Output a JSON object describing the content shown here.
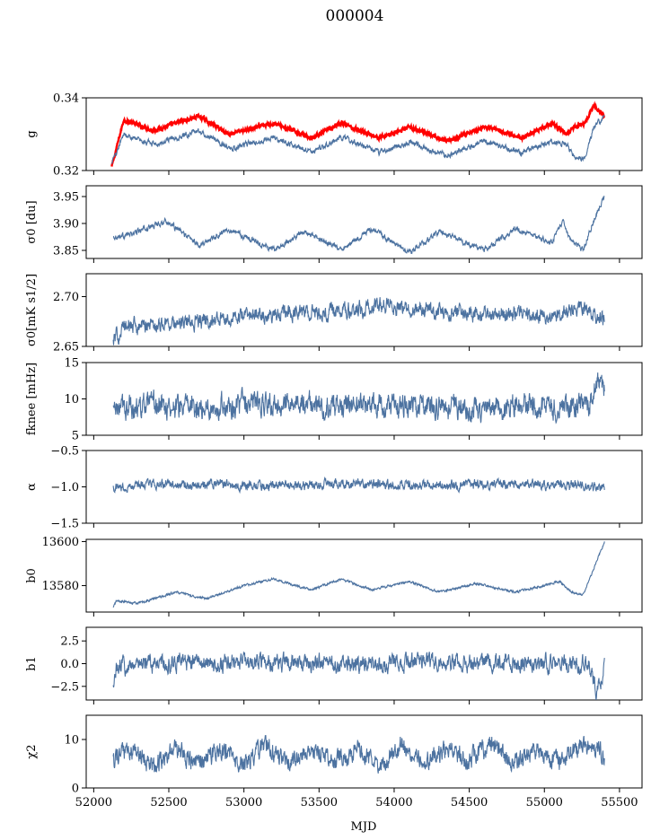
{
  "figure": {
    "title": "000004"
  },
  "colors": {
    "series": "#4c72a0",
    "highlight": "#ff0000"
  },
  "chart_data": [
    {
      "type": "line",
      "ylabel": "g",
      "ylim": [
        0.32,
        0.34
      ],
      "yticks": [
        "0.34",
        "0.32"
      ],
      "ytick_values": [
        0.34,
        0.32
      ],
      "series": [
        {
          "color": "#ff0000",
          "x": [
            52120,
            52200,
            52400,
            52700,
            52900,
            53200,
            53450,
            53650,
            53900,
            54100,
            54350,
            54600,
            54850,
            55050,
            55150,
            55200,
            55270,
            55330,
            55400
          ],
          "y": [
            0.321,
            0.334,
            0.331,
            0.335,
            0.33,
            0.333,
            0.329,
            0.333,
            0.329,
            0.332,
            0.328,
            0.332,
            0.329,
            0.333,
            0.33,
            0.332,
            0.333,
            0.338,
            0.335
          ]
        },
        {
          "color": "#4c72a0",
          "x": [
            52120,
            52200,
            52400,
            52700,
            52900,
            53200,
            53450,
            53650,
            53900,
            54100,
            54350,
            54600,
            54850,
            55050,
            55150,
            55200,
            55270,
            55330,
            55400
          ],
          "y": [
            0.322,
            0.33,
            0.327,
            0.331,
            0.326,
            0.329,
            0.325,
            0.329,
            0.325,
            0.328,
            0.324,
            0.328,
            0.325,
            0.328,
            0.327,
            0.324,
            0.323,
            0.332,
            0.335
          ]
        }
      ]
    },
    {
      "type": "line",
      "ylabel": "σ0 [du]",
      "ylim": [
        3.835,
        3.97
      ],
      "yticks": [
        "3.95",
        "3.90",
        "3.85"
      ],
      "ytick_values": [
        3.95,
        3.9,
        3.85
      ],
      "series": [
        {
          "color": "#4c72a0",
          "x": [
            52130,
            52250,
            52480,
            52700,
            52900,
            53200,
            53400,
            53650,
            53850,
            54100,
            54300,
            54600,
            54800,
            55050,
            55120,
            55170,
            55260,
            55320,
            55400
          ],
          "y": [
            3.875,
            3.88,
            3.905,
            3.86,
            3.89,
            3.85,
            3.885,
            3.85,
            3.89,
            3.845,
            3.885,
            3.85,
            3.89,
            3.865,
            3.905,
            3.87,
            3.85,
            3.9,
            3.95
          ]
        }
      ]
    },
    {
      "type": "line",
      "ylabel": "σ0[mK s1/2]",
      "ylim": [
        2.65,
        2.723
      ],
      "yticks": [
        "2.70",
        "2.65"
      ],
      "ytick_values": [
        2.7,
        2.65
      ],
      "series": [
        {
          "color": "#4c72a0",
          "x": [
            52130,
            52200,
            52400,
            52700,
            53000,
            53300,
            53600,
            53900,
            54200,
            54500,
            54800,
            55100,
            55250,
            55400
          ],
          "y": [
            2.655,
            2.67,
            2.672,
            2.675,
            2.68,
            2.683,
            2.685,
            2.69,
            2.687,
            2.683,
            2.683,
            2.68,
            2.69,
            2.675
          ]
        }
      ]
    },
    {
      "type": "line",
      "ylabel": "fknee [mHz]",
      "ylim": [
        5,
        15
      ],
      "yticks": [
        "15",
        "10",
        "5"
      ],
      "ytick_values": [
        15,
        10,
        5
      ],
      "series": [
        {
          "color": "#4c72a0",
          "x": [
            52130,
            52400,
            52700,
            53000,
            53300,
            53600,
            53900,
            54200,
            54500,
            54800,
            55100,
            55300,
            55350,
            55400
          ],
          "y": [
            8.6,
            9.0,
            8.8,
            9.3,
            9.4,
            9.1,
            9.2,
            9.0,
            8.8,
            8.9,
            8.8,
            9.0,
            12.5,
            11.5
          ]
        }
      ]
    },
    {
      "type": "line",
      "ylabel": "α",
      "ylim": [
        -1.5,
        -0.5
      ],
      "yticks": [
        "−0.5",
        "−1.0",
        "−1.5"
      ],
      "ytick_values": [
        -0.5,
        -1.0,
        -1.5
      ],
      "series": [
        {
          "color": "#4c72a0",
          "x": [
            52130,
            52400,
            52700,
            53000,
            53300,
            53600,
            53900,
            54200,
            54500,
            54800,
            55100,
            55400
          ],
          "y": [
            -1.0,
            -0.97,
            -0.97,
            -0.98,
            -0.97,
            -0.97,
            -0.97,
            -0.97,
            -0.97,
            -0.97,
            -0.97,
            -1.0
          ]
        }
      ]
    },
    {
      "type": "line",
      "ylabel": "b0",
      "ylim": [
        13568,
        13601
      ],
      "yticks": [
        "13600",
        "13580"
      ],
      "ytick_values": [
        13600,
        13580
      ],
      "series": [
        {
          "color": "#4c72a0",
          "x": [
            52130,
            52150,
            52300,
            52550,
            52750,
            53000,
            53200,
            53450,
            53650,
            53850,
            54100,
            54300,
            54550,
            54800,
            55000,
            55100,
            55180,
            55260,
            55330,
            55400
          ],
          "y": [
            13570,
            13573,
            13572,
            13577,
            13574,
            13580,
            13583,
            13578,
            13583,
            13578,
            13582,
            13577,
            13581,
            13577,
            13580,
            13582,
            13577,
            13576,
            13588,
            13600
          ]
        }
      ]
    },
    {
      "type": "line",
      "ylabel": "b1",
      "ylim": [
        -4.0,
        4.0
      ],
      "yticks": [
        "2.5",
        "0.0",
        "−2.5"
      ],
      "ytick_values": [
        2.5,
        0.0,
        -2.5
      ],
      "series": [
        {
          "color": "#4c72a0",
          "x": [
            52130,
            52150,
            52300,
            52600,
            52900,
            53200,
            53500,
            53800,
            54100,
            54400,
            54700,
            55000,
            55300,
            55350,
            55400
          ],
          "y": [
            -2.6,
            -0.4,
            0.0,
            0.1,
            0.0,
            0.1,
            0.0,
            0.0,
            0.1,
            0.0,
            0.1,
            0.0,
            0.0,
            -3.5,
            0.0
          ]
        }
      ]
    },
    {
      "type": "line",
      "ylabel": "χ2",
      "ylim": [
        0,
        15
      ],
      "yticks": [
        "10",
        "0"
      ],
      "ytick_values": [
        10,
        0
      ],
      "series": [
        {
          "color": "#4c72a0",
          "x": [
            52130,
            52250,
            52400,
            52550,
            52700,
            52850,
            53000,
            53150,
            53300,
            53450,
            53600,
            53750,
            53900,
            54050,
            54200,
            54350,
            54500,
            54650,
            54800,
            54950,
            55100,
            55250,
            55400
          ],
          "y": [
            6,
            8,
            5,
            8,
            5,
            8,
            5,
            9,
            5,
            8,
            5,
            8,
            5,
            9,
            5,
            8,
            6,
            9,
            5,
            8,
            5,
            9,
            7
          ]
        }
      ]
    }
  ],
  "xaxis": {
    "label": "MJD",
    "range": [
      51950,
      55650
    ],
    "ticks": [
      "52000",
      "52500",
      "53000",
      "53500",
      "54000",
      "54500",
      "55000",
      "55500"
    ],
    "tick_values": [
      52000,
      52500,
      53000,
      53500,
      54000,
      54500,
      55000,
      55500
    ]
  }
}
